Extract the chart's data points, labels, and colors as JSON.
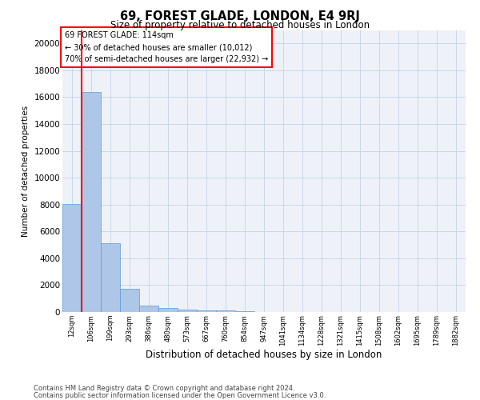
{
  "title": "69, FOREST GLADE, LONDON, E4 9RJ",
  "subtitle": "Size of property relative to detached houses in London",
  "xlabel": "Distribution of detached houses by size in London",
  "ylabel": "Number of detached properties",
  "footnote1": "Contains HM Land Registry data © Crown copyright and database right 2024.",
  "footnote2": "Contains public sector information licensed under the Open Government Licence v3.0.",
  "annotation_title": "69 FOREST GLADE: 114sqm",
  "annotation_line1": "← 30% of detached houses are smaller (10,012)",
  "annotation_line2": "70% of semi-detached houses are larger (22,932) →",
  "bar_color": "#aec6e8",
  "bar_edge_color": "#5b9bd5",
  "categories": [
    "12sqm",
    "106sqm",
    "199sqm",
    "293sqm",
    "386sqm",
    "480sqm",
    "573sqm",
    "667sqm",
    "760sqm",
    "854sqm",
    "947sqm",
    "1041sqm",
    "1134sqm",
    "1228sqm",
    "1321sqm",
    "1415sqm",
    "1508sqm",
    "1602sqm",
    "1695sqm",
    "1789sqm",
    "1882sqm"
  ],
  "values": [
    8050,
    16400,
    5100,
    1750,
    500,
    320,
    180,
    130,
    100,
    80,
    0,
    0,
    0,
    0,
    0,
    0,
    0,
    0,
    0,
    0,
    0
  ],
  "ylim": [
    0,
    21000
  ],
  "yticks": [
    0,
    2000,
    4000,
    6000,
    8000,
    10000,
    12000,
    14000,
    16000,
    18000,
    20000
  ],
  "annotation_box_color": "white",
  "annotation_box_edge": "red",
  "grid_color": "#c8d8e8",
  "background_color": "#eef2f8",
  "fig_background": "#ffffff",
  "red_line_x": 0.5
}
